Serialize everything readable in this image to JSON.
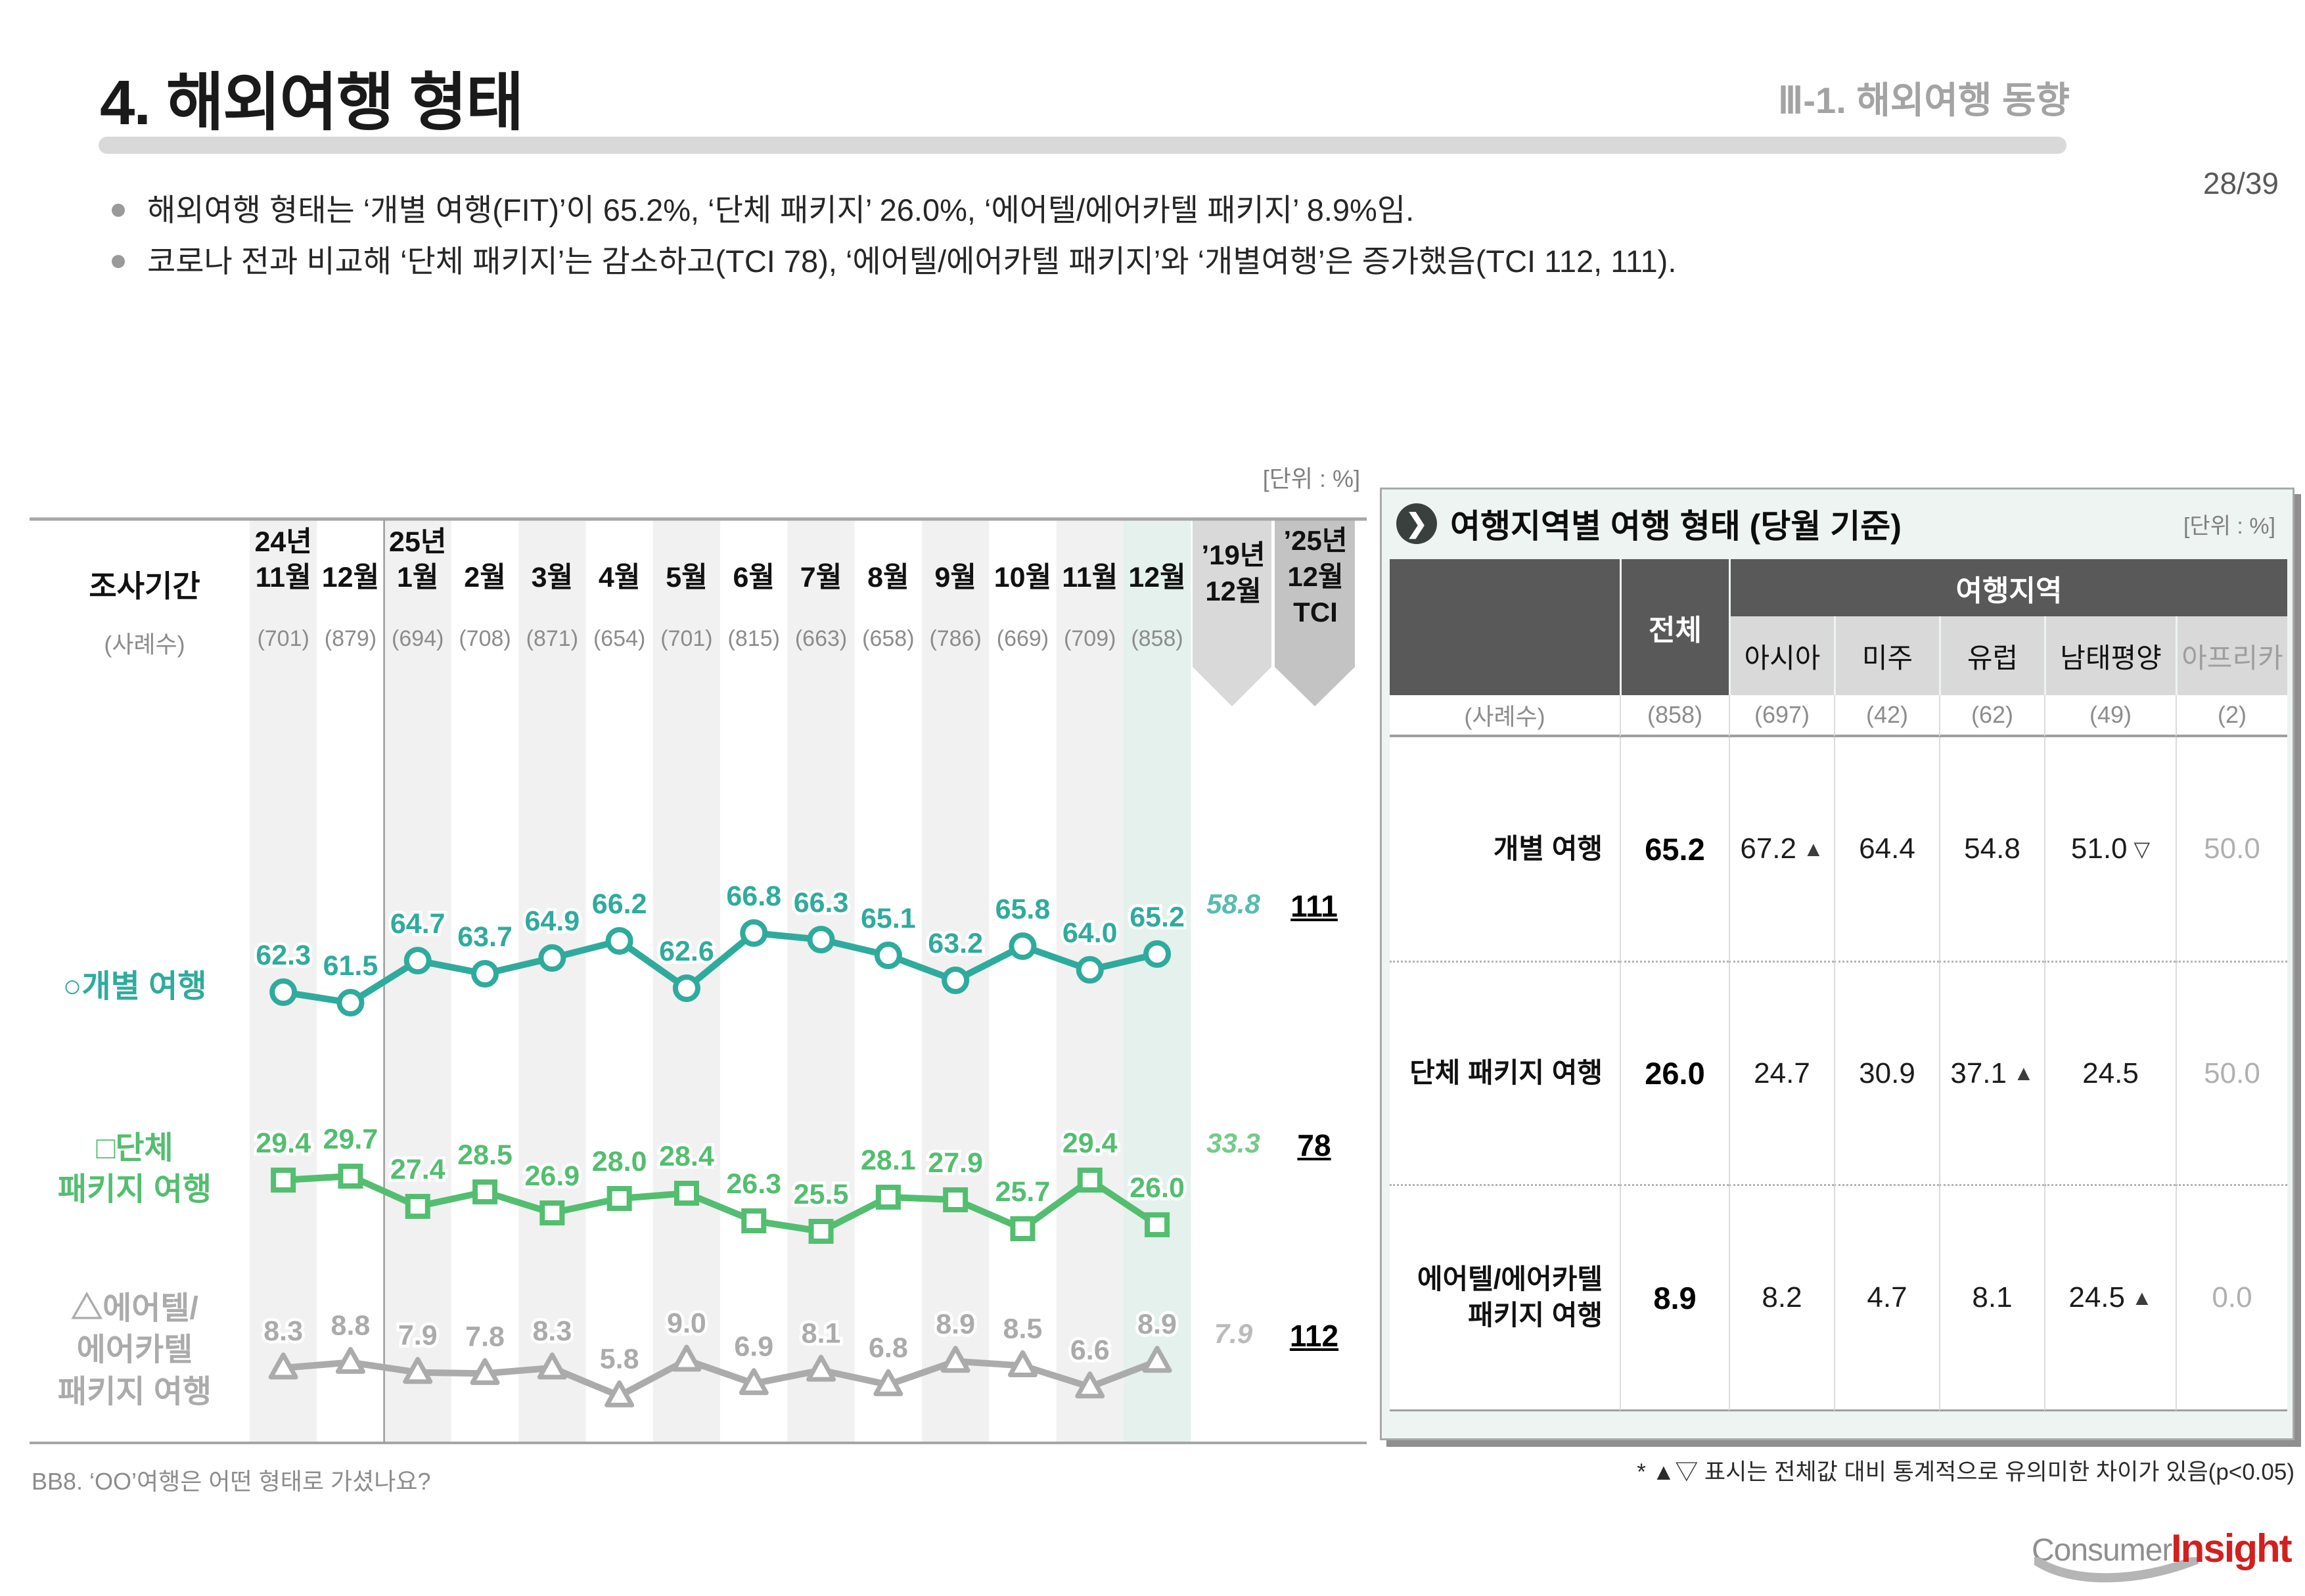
{
  "meta": {
    "title": "4. 해외여행 형태",
    "section": "Ⅲ-1. 해외여행 동향",
    "page": "28/39"
  },
  "bullets": [
    "해외여행 형태는 ‘개별 여행(FIT)’이 65.2%, ‘단체 패키지’ 26.0%, ‘에어텔/에어카텔 패키지’ 8.9%임.",
    "코로나 전과 비교해 ‘단체 패키지’는 감소하고(TCI 78), ‘에어텔/에어카텔 패키지’와 ‘개별여행’은 증가했음(TCI 112, 111)."
  ],
  "chart_data": {
    "type": "line",
    "unit_label": "[단위 : %]",
    "period_label": "조사기간",
    "sample_label": "(사례수)",
    "categories": [
      {
        "year": "24년",
        "month": "11월",
        "n": "(701)"
      },
      {
        "month": "12월",
        "n": "(879)"
      },
      {
        "year": "25년",
        "month": "1월",
        "n": "(694)"
      },
      {
        "month": "2월",
        "n": "(708)"
      },
      {
        "month": "3월",
        "n": "(871)"
      },
      {
        "month": "4월",
        "n": "(654)"
      },
      {
        "month": "5월",
        "n": "(701)"
      },
      {
        "month": "6월",
        "n": "(815)"
      },
      {
        "month": "7월",
        "n": "(663)"
      },
      {
        "month": "8월",
        "n": "(658)"
      },
      {
        "month": "9월",
        "n": "(786)"
      },
      {
        "month": "10월",
        "n": "(669)"
      },
      {
        "month": "11월",
        "n": "(709)"
      },
      {
        "month": "12월",
        "n": "(858)"
      }
    ],
    "special_cols": [
      {
        "lines": "’19년\n12월"
      },
      {
        "lines": "’25년\n12월\nTCI"
      }
    ],
    "series": [
      {
        "name": "○개별 여행",
        "marker": "circle",
        "color": "#2fab9d",
        "values": [
          "62.3",
          "61.5",
          "64.7",
          "63.7",
          "64.9",
          "66.2",
          "62.6",
          "66.8",
          "66.3",
          "65.1",
          "63.2",
          "65.8",
          "64.0",
          "65.2"
        ],
        "ref19": "58.8",
        "tci": "111"
      },
      {
        "name": "□단체\n패키지 여행",
        "marker": "square",
        "color": "#53be70",
        "values": [
          "29.4",
          "29.7",
          "27.4",
          "28.5",
          "26.9",
          "28.0",
          "28.4",
          "26.3",
          "25.5",
          "28.1",
          "27.9",
          "25.7",
          "29.4",
          "26.0"
        ],
        "ref19": "33.3",
        "tci": "78"
      },
      {
        "name": "△에어텔/\n에어카텔\n패키지 여행",
        "marker": "triangle",
        "color": "#ababab",
        "values": [
          "8.3",
          "8.8",
          "7.9",
          "7.8",
          "8.3",
          "5.8",
          "9.0",
          "6.9",
          "8.1",
          "6.8",
          "8.9",
          "8.5",
          "6.6",
          "8.9"
        ],
        "ref19": "7.9",
        "tci": "112"
      }
    ],
    "footnote": "BB8. ‘OO’여행은 어떤 형태로 가셨나요?"
  },
  "panel": {
    "title": "여행지역별 여행 형태 (당월 기준)",
    "unit": "[단위 : %]",
    "group_header": "여행지역",
    "total_label": "전체",
    "sample_label": "(사례수)",
    "total_n": "(858)",
    "region_cols": [
      {
        "label": "아시아",
        "n": "(697)",
        "dim": false
      },
      {
        "label": "미주",
        "n": "(42)",
        "dim": false
      },
      {
        "label": "유럽",
        "n": "(62)",
        "dim": false
      },
      {
        "label": "남태평양",
        "n": "(49)",
        "dim": false
      },
      {
        "label": "아프리카",
        "n": "(2)",
        "dim": true
      }
    ],
    "rows": [
      {
        "label": "개별 여행",
        "total": "65.2",
        "values": [
          {
            "v": "67.2",
            "mark": "▲"
          },
          {
            "v": "64.4"
          },
          {
            "v": "54.8"
          },
          {
            "v": "51.0",
            "mark": "▽"
          },
          {
            "v": "50.0",
            "dim": true
          }
        ]
      },
      {
        "label": "단체 패키지 여행",
        "total": "26.0",
        "values": [
          {
            "v": "24.7"
          },
          {
            "v": "30.9"
          },
          {
            "v": "37.1",
            "mark": "▲"
          },
          {
            "v": "24.5"
          },
          {
            "v": "50.0",
            "dim": true
          }
        ]
      },
      {
        "label": "에어텔/에어카텔\n패키지 여행",
        "total": "8.9",
        "values": [
          {
            "v": "8.2"
          },
          {
            "v": "4.7"
          },
          {
            "v": "8.1"
          },
          {
            "v": "24.5",
            "mark": "▲"
          },
          {
            "v": "0.0",
            "dim": true
          }
        ]
      }
    ],
    "footnote": "* ▲▽ 표시는 전체값 대비 통계적으로 유의미한 차이가 있음(p<0.05)"
  },
  "footer": {
    "logo_consumer": "Consumer",
    "logo_insight": "Insight"
  }
}
